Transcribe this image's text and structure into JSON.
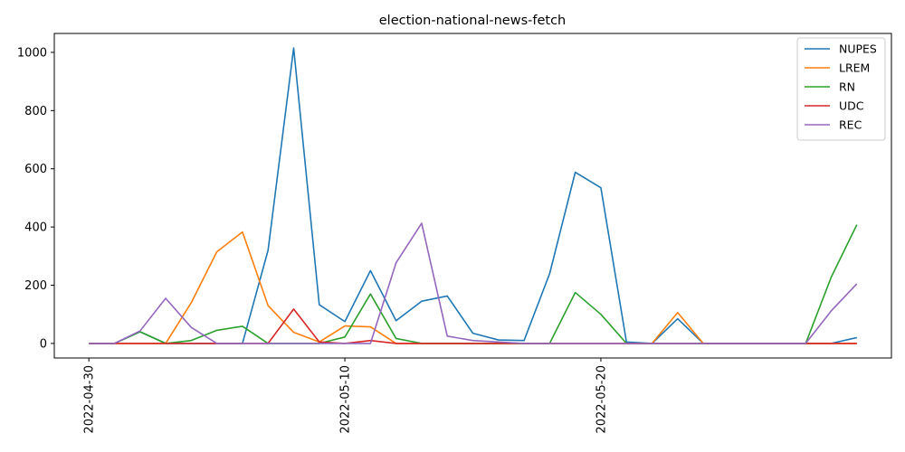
{
  "chart_data": {
    "type": "line",
    "title": "election-national-news-fetch",
    "xlabel": "",
    "ylabel": "",
    "x_start": "2022-04-30",
    "x_ticks": [
      "2022-04-30",
      "2022-05-10",
      "2022-05-20"
    ],
    "y_ticks": [
      0,
      200,
      400,
      600,
      800,
      1000
    ],
    "ylim": [
      -50,
      1065
    ],
    "grid": false,
    "legend_position": "top-right",
    "x": [
      "2022-04-30",
      "2022-05-01",
      "2022-05-02",
      "2022-05-03",
      "2022-05-04",
      "2022-05-05",
      "2022-05-06",
      "2022-05-07",
      "2022-05-08",
      "2022-05-09",
      "2022-05-10",
      "2022-05-11",
      "2022-05-12",
      "2022-05-13",
      "2022-05-14",
      "2022-05-15",
      "2022-05-16",
      "2022-05-17",
      "2022-05-18",
      "2022-05-19",
      "2022-05-20",
      "2022-05-21",
      "2022-05-22",
      "2022-05-23",
      "2022-05-24",
      "2022-05-25",
      "2022-05-26",
      "2022-05-27",
      "2022-05-28",
      "2022-05-29",
      "2022-05-30"
    ],
    "series": [
      {
        "name": "NUPES",
        "color": "#1f77b4",
        "values": [
          0,
          0,
          40,
          0,
          0,
          0,
          0,
          320,
          1015,
          133,
          75,
          250,
          78,
          145,
          163,
          35,
          12,
          10,
          240,
          588,
          535,
          5,
          0,
          85,
          0,
          0,
          0,
          0,
          0,
          0,
          20
        ]
      },
      {
        "name": "LREM",
        "color": "#ff7f0e",
        "values": [
          0,
          0,
          0,
          0,
          140,
          315,
          383,
          130,
          38,
          5,
          60,
          57,
          0,
          0,
          0,
          0,
          0,
          0,
          0,
          0,
          0,
          0,
          0,
          106,
          0,
          0,
          0,
          0,
          0,
          0,
          0
        ]
      },
      {
        "name": "RN",
        "color": "#2ca02c",
        "values": [
          0,
          0,
          40,
          0,
          10,
          45,
          59,
          0,
          0,
          0,
          22,
          170,
          17,
          0,
          0,
          0,
          0,
          0,
          0,
          175,
          100,
          0,
          0,
          0,
          0,
          0,
          0,
          0,
          0,
          228,
          408
        ]
      },
      {
        "name": "UDC",
        "color": "#d62728",
        "values": [
          0,
          0,
          0,
          0,
          0,
          0,
          0,
          0,
          118,
          5,
          0,
          10,
          0,
          0,
          0,
          0,
          0,
          0,
          0,
          0,
          0,
          0,
          0,
          0,
          0,
          0,
          0,
          0,
          0,
          0,
          0
        ]
      },
      {
        "name": "REC",
        "color": "#9467bd",
        "values": [
          0,
          0,
          43,
          155,
          55,
          0,
          0,
          0,
          0,
          0,
          0,
          0,
          277,
          413,
          25,
          10,
          5,
          0,
          0,
          0,
          0,
          0,
          0,
          0,
          0,
          0,
          0,
          0,
          0,
          112,
          205
        ]
      }
    ]
  }
}
